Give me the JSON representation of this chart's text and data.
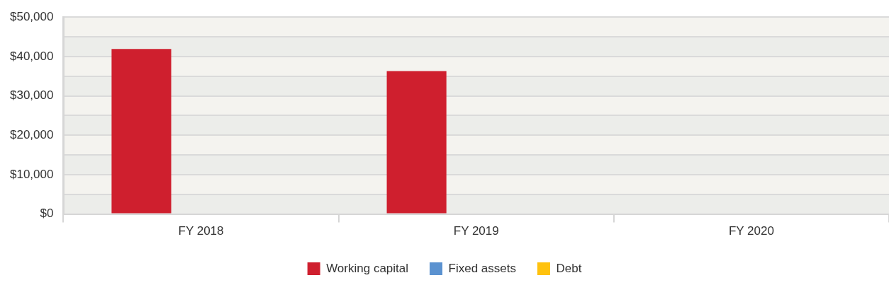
{
  "chart_data": {
    "type": "bar",
    "categories": [
      "FY 2018",
      "FY 2019",
      "FY 2020"
    ],
    "series": [
      {
        "name": "Working capital",
        "color": "#cf1f2e",
        "values": [
          41900,
          36300,
          0
        ]
      },
      {
        "name": "Fixed assets",
        "color": "#5b92d0",
        "values": [
          0,
          0,
          0
        ]
      },
      {
        "name": "Debt",
        "color": "#ffc20e",
        "values": [
          0,
          0,
          0
        ]
      }
    ],
    "ylim": [
      0,
      50000
    ],
    "yticks": [
      {
        "value": 0,
        "label": "$0"
      },
      {
        "value": 5000,
        "label": null
      },
      {
        "value": 10000,
        "label": "$10,000"
      },
      {
        "value": 15000,
        "label": null
      },
      {
        "value": 20000,
        "label": "$20,000"
      },
      {
        "value": 25000,
        "label": null
      },
      {
        "value": 30000,
        "label": "$30,000"
      },
      {
        "value": 35000,
        "label": null
      },
      {
        "value": 40000,
        "label": "$40,000"
      },
      {
        "value": 45000,
        "label": null
      },
      {
        "value": 50000,
        "label": "$50,000"
      }
    ],
    "grid": "y",
    "legend": "bottom"
  }
}
